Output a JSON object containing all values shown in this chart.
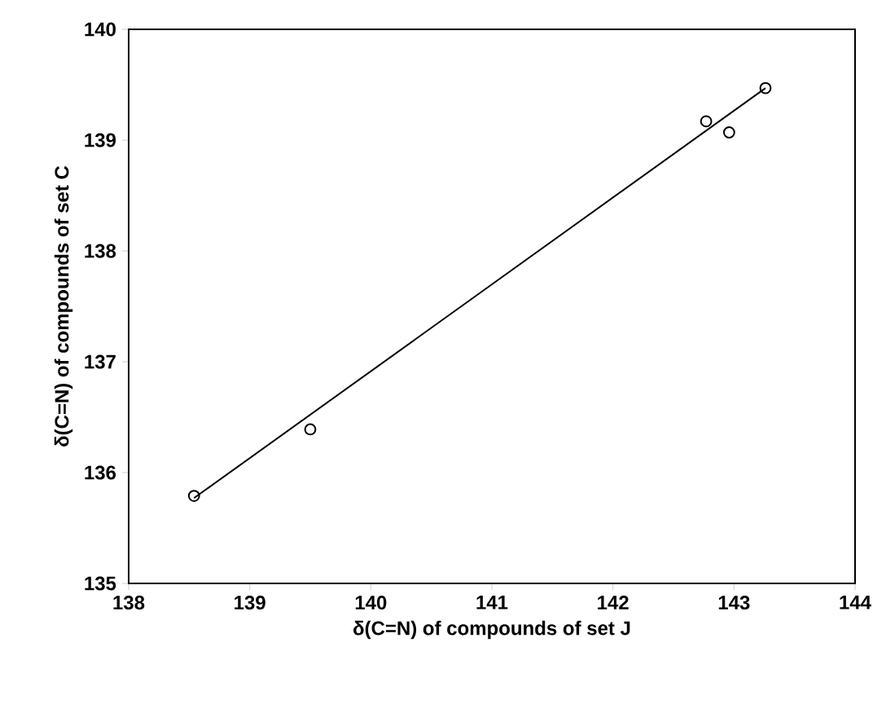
{
  "chart_data": {
    "type": "scatter",
    "xlabel": "δ(C=N) of compounds of set J",
    "ylabel": "δ(C=N) of compounds of set C",
    "xlim": [
      138,
      144
    ],
    "ylim": [
      135,
      140
    ],
    "xticks": [
      138,
      139,
      140,
      141,
      142,
      143,
      144
    ],
    "yticks": [
      135,
      136,
      137,
      138,
      139,
      140
    ],
    "grid": false,
    "series": [
      {
        "color": "#000000",
        "marker": "circle",
        "x": [
          138.54,
          139.5,
          142.77,
          142.96,
          143.26
        ],
        "values": [
          135.79,
          136.39,
          139.17,
          139.07,
          139.47
        ]
      },
      {
        "type": "line",
        "color": "#000000",
        "marker": "none",
        "line_style": "solid",
        "x": [
          138.54,
          143.26
        ],
        "values": [
          135.77,
          139.47
        ]
      }
    ]
  }
}
